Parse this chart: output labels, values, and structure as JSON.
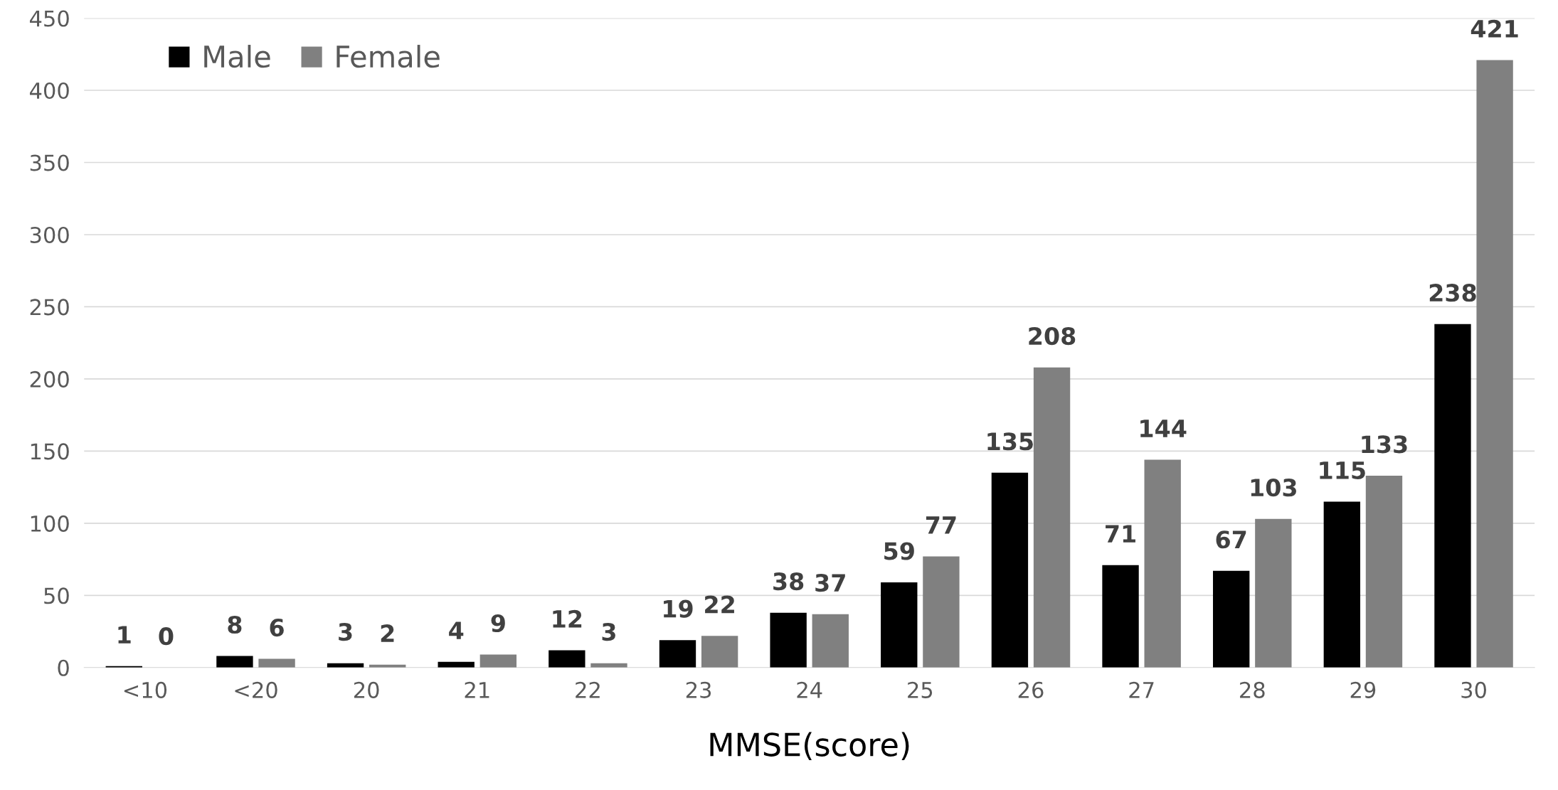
{
  "chart_data": {
    "type": "bar",
    "xlabel": "MMSE(score)",
    "categories": [
      "<10",
      "<20",
      "20",
      "21",
      "22",
      "23",
      "24",
      "25",
      "26",
      "27",
      "28",
      "29",
      "30"
    ],
    "series": [
      {
        "name": "Male",
        "color": "#000000",
        "values": [
          1,
          8,
          3,
          4,
          12,
          19,
          38,
          59,
          135,
          71,
          67,
          115,
          238
        ]
      },
      {
        "name": "Female",
        "color": "#808080",
        "values": [
          0,
          6,
          2,
          9,
          3,
          22,
          37,
          77,
          208,
          144,
          103,
          133,
          421
        ]
      }
    ],
    "ylim": [
      0,
      450
    ],
    "yticks": [
      0,
      50,
      100,
      150,
      200,
      250,
      300,
      350,
      400,
      450
    ],
    "grid": "y",
    "legend": "top left",
    "data_labels": true
  }
}
